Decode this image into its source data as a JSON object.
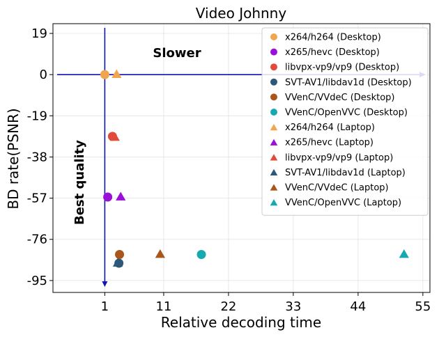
{
  "chart_data": {
    "type": "scatter",
    "title": "Video Johnny",
    "xlabel": "Relative decoding time",
    "ylabel": "BD rate(PSNR)",
    "xlim": [
      -7.8,
      56.2
    ],
    "ylim": [
      -100.5,
      23.5
    ],
    "xticks": [
      1,
      11,
      22,
      33,
      44,
      55
    ],
    "yticks": [
      19,
      0,
      -19,
      -38,
      -57,
      -76,
      -95
    ],
    "xtick_labels": [
      "1",
      "11",
      "22",
      "33",
      "44",
      "55"
    ],
    "ytick_labels": [
      "19",
      "0",
      "-19",
      "-38",
      "-57",
      "-76",
      "-95"
    ],
    "grid": true,
    "legend_position": "top-right",
    "annotations": {
      "slower": "Slower",
      "best_quality": "Best quality"
    },
    "series": [
      {
        "name": "x264/h264 (Desktop)",
        "marker": "circle",
        "color": "#f0a64e",
        "points": [
          {
            "x": 1.0,
            "y": 0.0
          }
        ]
      },
      {
        "name": "x265/hevc (Desktop)",
        "marker": "circle",
        "color": "#9b10d8",
        "points": [
          {
            "x": 1.5,
            "y": -56.5
          }
        ]
      },
      {
        "name": "libvpx-vp9/vp9 (Desktop)",
        "marker": "circle",
        "color": "#e04b3c",
        "points": [
          {
            "x": 2.3,
            "y": -28.5
          }
        ]
      },
      {
        "name": "SVT-AV1/libdav1d (Desktop)",
        "marker": "circle",
        "color": "#2d5878",
        "points": [
          {
            "x": 3.4,
            "y": -87.0
          }
        ]
      },
      {
        "name": "VVenC/VVdeC (Desktop)",
        "marker": "circle",
        "color": "#a8561c",
        "points": [
          {
            "x": 3.5,
            "y": -83.0
          }
        ]
      },
      {
        "name": "VVenC/OpenVVC (Desktop)",
        "marker": "circle",
        "color": "#17a9b1",
        "points": [
          {
            "x": 17.4,
            "y": -83.0
          }
        ]
      },
      {
        "name": "x264/h264 (Laptop)",
        "marker": "triangle",
        "color": "#f0a64e",
        "points": [
          {
            "x": 3.0,
            "y": 0.0
          }
        ]
      },
      {
        "name": "x265/hevc (Laptop)",
        "marker": "triangle",
        "color": "#9b10d8",
        "points": [
          {
            "x": 3.7,
            "y": -56.5
          }
        ]
      },
      {
        "name": "libvpx-vp9/vp9 (Laptop)",
        "marker": "triangle",
        "color": "#e04b3c",
        "points": [
          {
            "x": 2.7,
            "y": -29.0
          }
        ]
      },
      {
        "name": "SVT-AV1/libdav1d (Laptop)",
        "marker": "triangle",
        "color": "#2d5878",
        "points": [
          {
            "x": 3.2,
            "y": -87.0
          }
        ]
      },
      {
        "name": "VVenC/VVdeC (Laptop)",
        "marker": "triangle",
        "color": "#a8561c",
        "points": [
          {
            "x": 10.4,
            "y": -83.0
          }
        ]
      },
      {
        "name": "VVenC/OpenVVC (Laptop)",
        "marker": "triangle",
        "color": "#17a9b1",
        "points": [
          {
            "x": 51.8,
            "y": -83.0
          }
        ]
      }
    ]
  }
}
